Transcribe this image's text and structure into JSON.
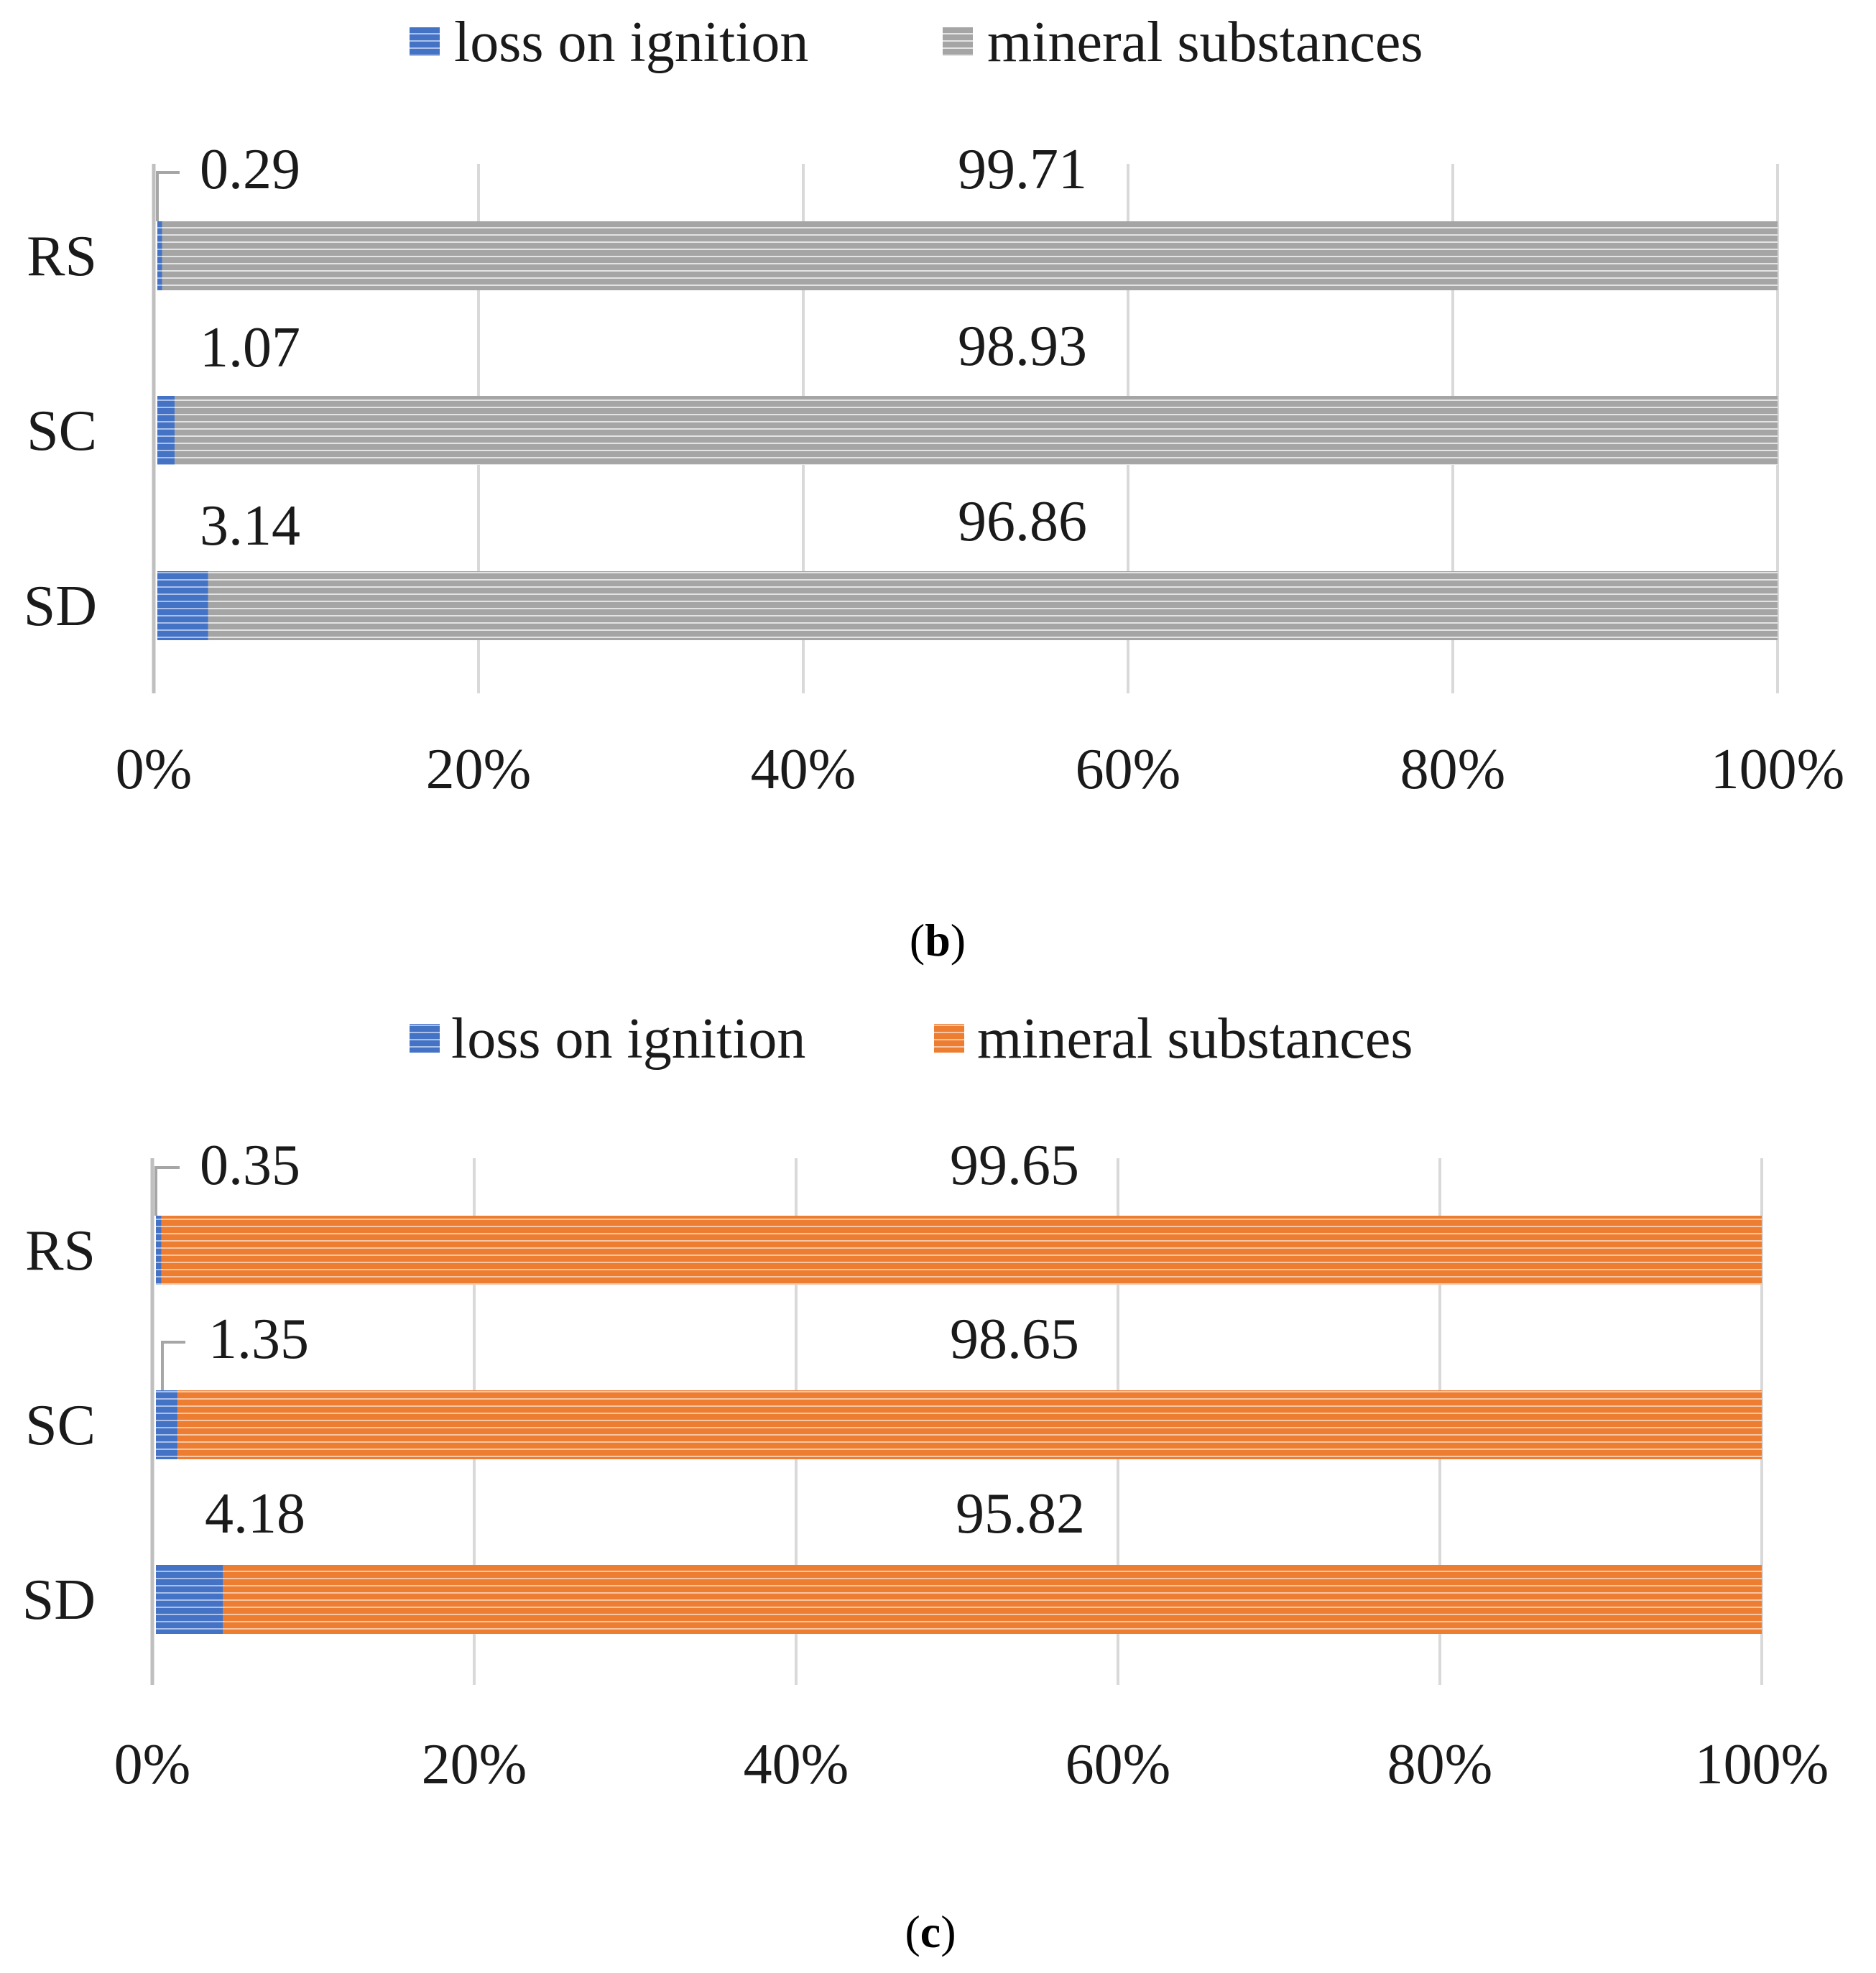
{
  "chart_data": [
    {
      "type": "bar",
      "orientation": "horizontal",
      "stacked": "percent",
      "panel": "b",
      "caption": {
        "open": "(",
        "label": "b",
        "close": ")"
      },
      "categories": [
        "RS",
        "SC",
        "SD"
      ],
      "series": [
        {
          "name": "loss on ignition",
          "values": [
            0.29,
            1.07,
            3.14
          ],
          "labels": [
            "0.29",
            "1.07",
            "3.14"
          ],
          "color": "#4472c4"
        },
        {
          "name": "mineral substances",
          "values": [
            99.71,
            98.93,
            96.86
          ],
          "labels": [
            "99.71",
            "98.93",
            "96.86"
          ],
          "color": "#a5a5a5"
        }
      ],
      "x_ticks": [
        "0%",
        "20%",
        "40%",
        "60%",
        "80%",
        "100%"
      ],
      "xlim": [
        0,
        100
      ],
      "grid": true,
      "legend": "top"
    },
    {
      "type": "bar",
      "orientation": "horizontal",
      "stacked": "percent",
      "panel": "c",
      "caption": {
        "open": "(",
        "label": "c",
        "close": ")"
      },
      "categories": [
        "RS",
        "SC",
        "SD"
      ],
      "series": [
        {
          "name": "loss on ignition",
          "values": [
            0.35,
            1.35,
            4.18
          ],
          "labels": [
            "0.35",
            "1.35",
            "4.18"
          ],
          "color": "#4472c4"
        },
        {
          "name": "mineral substances",
          "values": [
            99.65,
            98.65,
            95.82
          ],
          "labels": [
            "99.65",
            "98.65",
            "95.82"
          ],
          "color": "#ed7d31"
        }
      ],
      "x_ticks": [
        "0%",
        "20%",
        "40%",
        "60%",
        "80%",
        "100%"
      ],
      "xlim": [
        0,
        100
      ],
      "grid": true,
      "legend": "top"
    }
  ]
}
